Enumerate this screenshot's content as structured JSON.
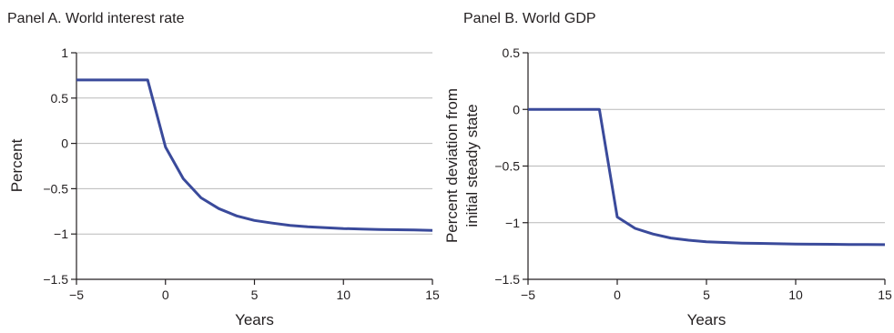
{
  "chart_data": [
    {
      "type": "line",
      "title": "Panel A. World interest rate",
      "xlabel": "Years",
      "ylabel": "Percent",
      "xlim": [
        -5,
        15
      ],
      "ylim": [
        -1.5,
        1
      ],
      "xticks": [
        -5,
        0,
        5,
        10,
        15
      ],
      "xtick_labels": [
        "−5",
        "0",
        "5",
        "10",
        "15"
      ],
      "yticks": [
        1,
        0.5,
        0,
        -0.5,
        -1,
        -1.5
      ],
      "ytick_labels": [
        "1",
        "0.5",
        "0",
        "−0.5",
        "−1",
        "−1.5"
      ],
      "grid": true,
      "series": [
        {
          "color": "#3a4a9b",
          "x": [
            -5,
            -1,
            0,
            1,
            2,
            3,
            4,
            5,
            6,
            7,
            8,
            9,
            10,
            11,
            12,
            13,
            14,
            15
          ],
          "y": [
            0.7,
            0.7,
            -0.04,
            -0.39,
            -0.6,
            -0.72,
            -0.8,
            -0.85,
            -0.88,
            -0.905,
            -0.92,
            -0.93,
            -0.94,
            -0.945,
            -0.95,
            -0.953,
            -0.956,
            -0.96
          ]
        }
      ]
    },
    {
      "type": "line",
      "title": "Panel B. World GDP",
      "xlabel": "Years",
      "ylabel": [
        "Percent deviation from",
        "initial steady state"
      ],
      "xlim": [
        -5,
        15
      ],
      "ylim": [
        -1.5,
        0.5
      ],
      "xticks": [
        -5,
        0,
        5,
        10,
        15
      ],
      "xtick_labels": [
        "−5",
        "0",
        "5",
        "10",
        "15"
      ],
      "yticks": [
        0.5,
        0,
        -0.5,
        -1,
        -1.5
      ],
      "ytick_labels": [
        "0.5",
        "0",
        "−0.5",
        "−1",
        "−1.5"
      ],
      "grid": true,
      "series": [
        {
          "color": "#3a4a9b",
          "x": [
            -5,
            -1,
            0,
            1,
            2,
            3,
            4,
            5,
            6,
            7,
            8,
            9,
            10,
            11,
            12,
            13,
            14,
            15
          ],
          "y": [
            0,
            0,
            -0.95,
            -1.05,
            -1.1,
            -1.135,
            -1.155,
            -1.168,
            -1.175,
            -1.18,
            -1.183,
            -1.186,
            -1.188,
            -1.19,
            -1.191,
            -1.192,
            -1.193,
            -1.194
          ]
        }
      ]
    }
  ]
}
